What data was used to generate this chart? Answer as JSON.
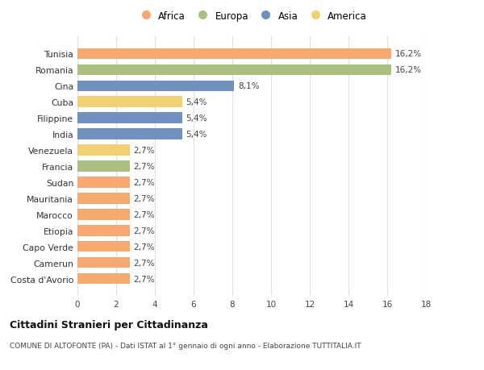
{
  "countries": [
    "Tunisia",
    "Romania",
    "Cina",
    "Cuba",
    "Filippine",
    "India",
    "Venezuela",
    "Francia",
    "Sudan",
    "Mauritania",
    "Marocco",
    "Etiopia",
    "Capo Verde",
    "Camerun",
    "Costa d'Avorio"
  ],
  "values": [
    16.2,
    16.2,
    8.1,
    5.4,
    5.4,
    5.4,
    2.7,
    2.7,
    2.7,
    2.7,
    2.7,
    2.7,
    2.7,
    2.7,
    2.7
  ],
  "labels": [
    "16,2%",
    "16,2%",
    "8,1%",
    "5,4%",
    "5,4%",
    "5,4%",
    "2,7%",
    "2,7%",
    "2,7%",
    "2,7%",
    "2,7%",
    "2,7%",
    "2,7%",
    "2,7%",
    "2,7%"
  ],
  "regions": [
    "Africa",
    "Europa",
    "Asia",
    "America",
    "Asia",
    "Asia",
    "America",
    "Europa",
    "Africa",
    "Africa",
    "Africa",
    "Africa",
    "Africa",
    "Africa",
    "Africa"
  ],
  "colors": {
    "Africa": "#F5A870",
    "Europa": "#AABF80",
    "Asia": "#7090C0",
    "America": "#F0D070"
  },
  "legend_order": [
    "Africa",
    "Europa",
    "Asia",
    "America"
  ],
  "xlim": [
    0,
    18
  ],
  "xticks": [
    0,
    2,
    4,
    6,
    8,
    10,
    12,
    14,
    16,
    18
  ],
  "title1": "Cittadini Stranieri per Cittadinanza",
  "title2": "COMUNE DI ALTOFONTE (PA) - Dati ISTAT al 1° gennaio di ogni anno - Elaborazione TUTTITALIA.IT",
  "background_color": "#ffffff",
  "grid_color": "#e0e0e0",
  "bar_height": 0.68
}
